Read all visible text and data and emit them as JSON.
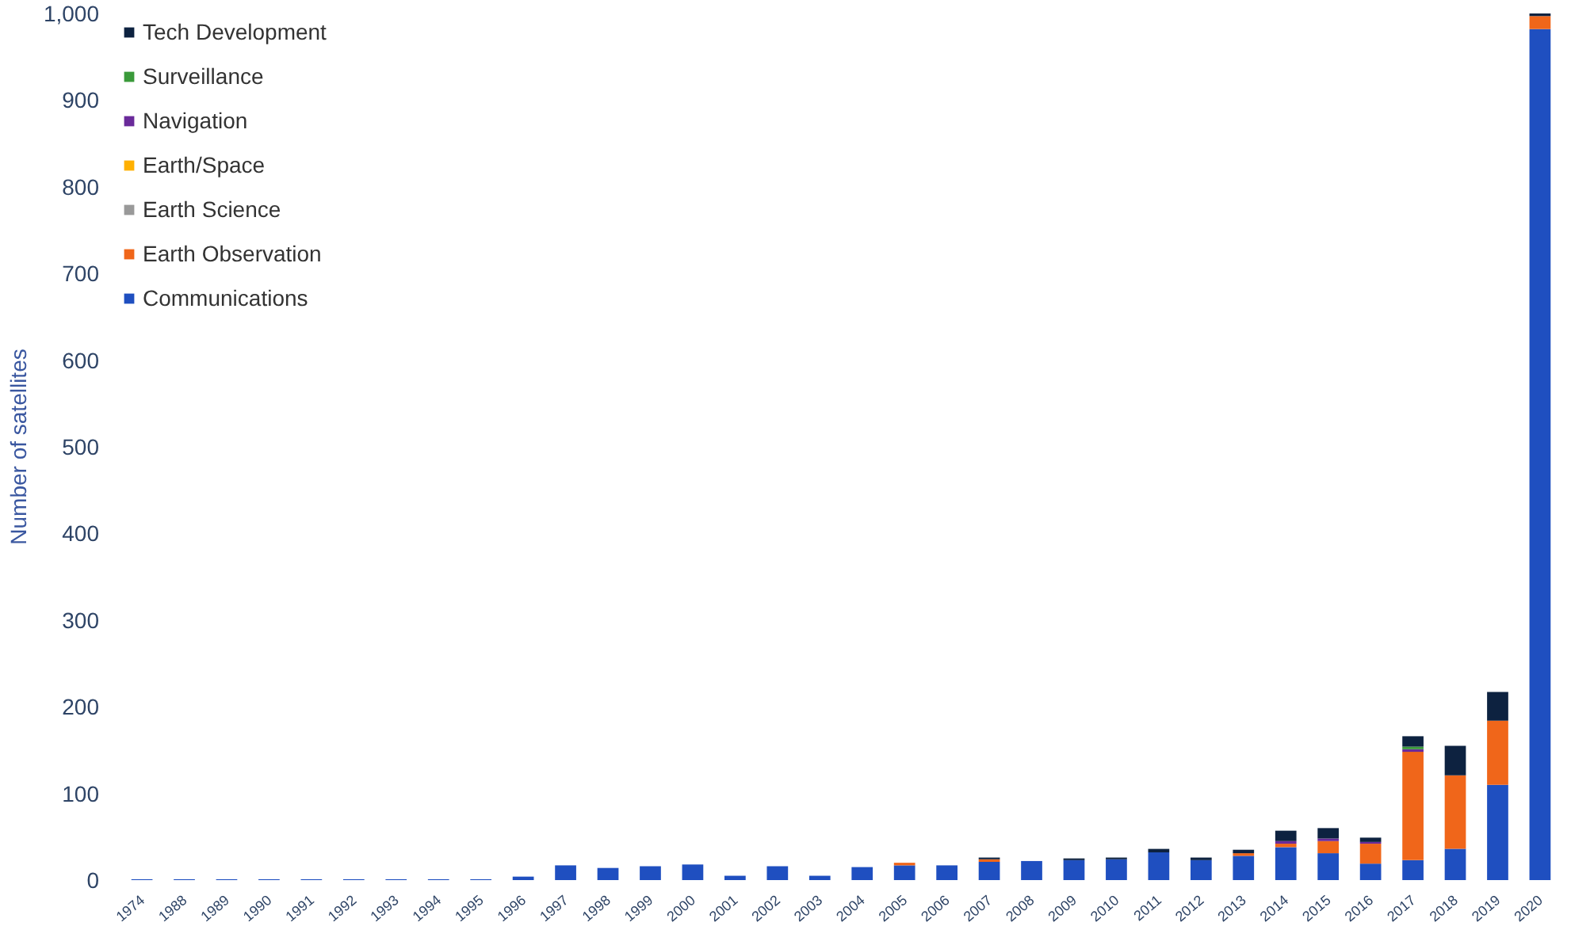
{
  "chart_data": {
    "type": "bar",
    "stacked": true,
    "ylabel": "Number of satellites",
    "categories": [
      "1974",
      "1988",
      "1989",
      "1990",
      "1991",
      "1992",
      "1993",
      "1994",
      "1995",
      "1996",
      "1997",
      "1998",
      "1999",
      "2000",
      "2001",
      "2002",
      "2003",
      "2004",
      "2005",
      "2006",
      "2007",
      "2008",
      "2009",
      "2010",
      "2011",
      "2012",
      "2013",
      "2014",
      "2015",
      "2016",
      "2017",
      "2018",
      "2019",
      "2020"
    ],
    "ylim": [
      0,
      1000
    ],
    "yticks": [
      0,
      100,
      200,
      300,
      400,
      500,
      600,
      700,
      800,
      900,
      {
        "value": 1000,
        "label": "1,000"
      }
    ],
    "grid": false,
    "legend": "top left",
    "series": [
      {
        "name": "Communications",
        "color": "#1f4fc0",
        "values": [
          1,
          1,
          1,
          1,
          1,
          1,
          1,
          1,
          1,
          4,
          17,
          14,
          16,
          18,
          5,
          16,
          5,
          15,
          17,
          17,
          21,
          22,
          23,
          24,
          32,
          23,
          28,
          38,
          31,
          19,
          23,
          36,
          110,
          982
        ]
      },
      {
        "name": "Earth Observation",
        "color": "#f0661a",
        "values": [
          0,
          0,
          0,
          0,
          0,
          0,
          0,
          0,
          0,
          0,
          0,
          0,
          0,
          0,
          0,
          0,
          0,
          0,
          3,
          0,
          3,
          0,
          0,
          0,
          0,
          0,
          3,
          4,
          14,
          23,
          125,
          85,
          74,
          15
        ]
      },
      {
        "name": "Earth Science",
        "color": "#999999",
        "values": [
          0,
          0,
          0,
          0,
          0,
          0,
          0,
          0,
          0,
          0,
          0,
          0,
          0,
          0,
          0,
          0,
          0,
          0,
          0,
          0,
          0,
          0,
          0,
          0,
          0,
          0,
          0,
          0,
          0,
          0,
          0,
          0,
          0,
          0
        ]
      },
      {
        "name": "Earth/Space",
        "color": "#ffb000",
        "values": [
          0,
          0,
          0,
          0,
          0,
          0,
          0,
          0,
          0,
          0,
          0,
          0,
          0,
          0,
          0,
          0,
          0,
          0,
          0,
          0,
          0,
          0,
          0,
          0,
          0,
          0,
          0,
          0,
          0,
          0,
          0,
          0,
          0,
          0
        ]
      },
      {
        "name": "Navigation",
        "color": "#6a2a9a",
        "values": [
          0,
          0,
          0,
          0,
          0,
          0,
          0,
          0,
          0,
          0,
          0,
          0,
          0,
          0,
          0,
          0,
          0,
          0,
          0,
          0,
          0,
          0,
          0,
          0,
          0,
          0,
          0,
          3,
          3,
          2,
          3,
          0,
          0,
          0
        ]
      },
      {
        "name": "Surveillance",
        "color": "#3a9a3a",
        "values": [
          0,
          0,
          0,
          0,
          0,
          0,
          0,
          0,
          0,
          0,
          0,
          0,
          0,
          0,
          0,
          0,
          0,
          0,
          0,
          0,
          0,
          0,
          0,
          0,
          0,
          0,
          0,
          0,
          0,
          0,
          3,
          0,
          0,
          0
        ]
      },
      {
        "name": "Tech Development",
        "color": "#0d2240",
        "values": [
          0,
          0,
          0,
          0,
          0,
          0,
          0,
          0,
          0,
          0,
          0,
          0,
          0,
          0,
          0,
          0,
          0,
          0,
          0,
          0,
          2,
          0,
          2,
          2,
          4,
          3,
          4,
          12,
          12,
          5,
          12,
          34,
          33,
          3
        ]
      }
    ]
  }
}
